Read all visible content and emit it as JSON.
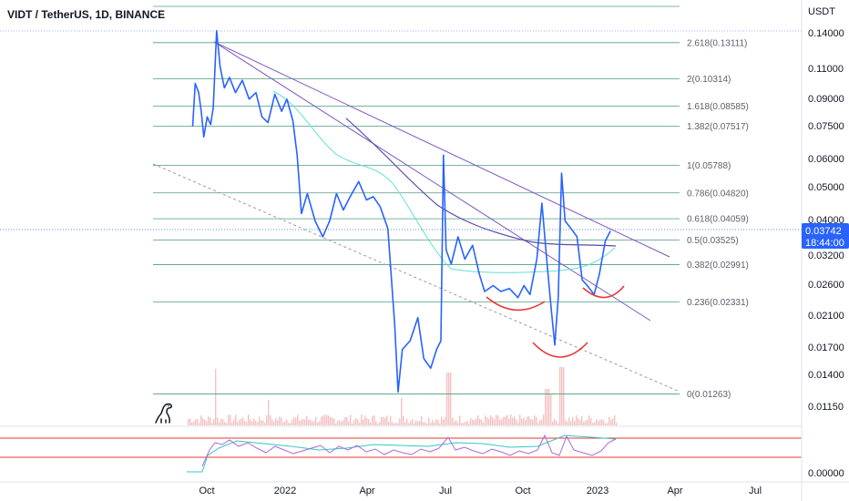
{
  "header": {
    "symbol_title": "VIDT / TetherUS, 1D, BINANCE"
  },
  "price_axis": {
    "unit": "USDT",
    "ticks": [
      "0.14000",
      "0.11000",
      "0.09000",
      "0.07500",
      "0.06000",
      "0.05000",
      "0.04000",
      "0.03200",
      "0.02600",
      "0.02100",
      "0.01700",
      "0.01400",
      "0.01150",
      "0.00000"
    ],
    "current_price": "0.03742",
    "countdown": "18:44:00"
  },
  "time_axis": {
    "ticks": [
      "Oct",
      "2022",
      "Apr",
      "Jul",
      "Oct",
      "2023",
      "Apr",
      "Jul"
    ]
  },
  "colors": {
    "price_line": "#2962ff",
    "fib_line": "#4f9b7f",
    "trend_line": "#7e57c2",
    "ma_line": "#5fe0d7",
    "annotation": "#e53935",
    "volume": "#f2c2c2",
    "rsi_line": "#ad6ad8",
    "rsi_bound": "#e53935",
    "current_price_badge": "#2962ff"
  },
  "icons": {
    "logo": "dinosaur-logo-icon"
  },
  "chart_data": {
    "type": "line",
    "title": "VIDT / TetherUS, 1D, BINANCE",
    "ylabel": "USDT",
    "yscale": "log",
    "ylim": [
      0.0115,
      0.16
    ],
    "xlim": [
      "2021-09-15",
      "2023-07-31"
    ],
    "grid": false,
    "series": [
      {
        "name": "VIDT/USDT",
        "points": [
          [
            "2021-09-15",
            0.075
          ],
          [
            "2021-09-18",
            0.1
          ],
          [
            "2021-09-22",
            0.094
          ],
          [
            "2021-09-25",
            0.083
          ],
          [
            "2021-09-28",
            0.07
          ],
          [
            "2021-10-02",
            0.08
          ],
          [
            "2021-10-06",
            0.076
          ],
          [
            "2021-10-09",
            0.085
          ],
          [
            "2021-10-13",
            0.142
          ],
          [
            "2021-10-17",
            0.112
          ],
          [
            "2021-10-22",
            0.097
          ],
          [
            "2021-10-28",
            0.104
          ],
          [
            "2021-11-04",
            0.094
          ],
          [
            "2021-11-12",
            0.102
          ],
          [
            "2021-11-20",
            0.09
          ],
          [
            "2021-11-28",
            0.094
          ],
          [
            "2021-12-05",
            0.08
          ],
          [
            "2021-12-12",
            0.077
          ],
          [
            "2021-12-20",
            0.093
          ],
          [
            "2021-12-28",
            0.083
          ],
          [
            "2022-01-03",
            0.09
          ],
          [
            "2022-01-10",
            0.078
          ],
          [
            "2022-01-15",
            0.062
          ],
          [
            "2022-01-20",
            0.042
          ],
          [
            "2022-01-27",
            0.048
          ],
          [
            "2022-02-05",
            0.04
          ],
          [
            "2022-02-14",
            0.036
          ],
          [
            "2022-02-22",
            0.04
          ],
          [
            "2022-03-02",
            0.048
          ],
          [
            "2022-03-10",
            0.043
          ],
          [
            "2022-03-18",
            0.047
          ],
          [
            "2022-03-28",
            0.052
          ],
          [
            "2022-04-06",
            0.046
          ],
          [
            "2022-04-14",
            0.047
          ],
          [
            "2022-04-22",
            0.044
          ],
          [
            "2022-05-01",
            0.038
          ],
          [
            "2022-05-09",
            0.02
          ],
          [
            "2022-05-13",
            0.0128
          ],
          [
            "2022-05-18",
            0.017
          ],
          [
            "2022-05-27",
            0.018
          ],
          [
            "2022-06-05",
            0.021
          ],
          [
            "2022-06-12",
            0.016
          ],
          [
            "2022-06-20",
            0.015
          ],
          [
            "2022-06-27",
            0.017
          ],
          [
            "2022-07-02",
            0.018
          ],
          [
            "2022-07-05",
            0.062
          ],
          [
            "2022-07-08",
            0.033
          ],
          [
            "2022-07-14",
            0.03
          ],
          [
            "2022-07-22",
            0.036
          ],
          [
            "2022-07-30",
            0.031
          ],
          [
            "2022-08-08",
            0.034
          ],
          [
            "2022-08-16",
            0.028
          ],
          [
            "2022-08-22",
            0.025
          ],
          [
            "2022-09-01",
            0.026
          ],
          [
            "2022-09-10",
            0.025
          ],
          [
            "2022-09-20",
            0.0255
          ],
          [
            "2022-09-30",
            0.024
          ],
          [
            "2022-10-07",
            0.026
          ],
          [
            "2022-10-14",
            0.0245
          ],
          [
            "2022-10-22",
            0.031
          ],
          [
            "2022-10-28",
            0.045
          ],
          [
            "2022-11-03",
            0.03
          ],
          [
            "2022-11-08",
            0.022
          ],
          [
            "2022-11-12",
            0.0175
          ],
          [
            "2022-11-16",
            0.024
          ],
          [
            "2022-11-20",
            0.055
          ],
          [
            "2022-11-24",
            0.04
          ],
          [
            "2022-12-01",
            0.038
          ],
          [
            "2022-12-08",
            0.036
          ],
          [
            "2022-12-14",
            0.027
          ],
          [
            "2022-12-20",
            0.026
          ],
          [
            "2022-12-28",
            0.0245
          ],
          [
            "2023-01-03",
            0.028
          ],
          [
            "2023-01-10",
            0.035
          ],
          [
            "2023-01-16",
            0.0374
          ]
        ]
      }
    ],
    "fibonacci_levels": [
      {
        "label": "2.618(0.13111)",
        "value": 0.13111
      },
      {
        "label": "2(0.10314)",
        "value": 0.10314
      },
      {
        "label": "1.618(0.08585)",
        "value": 0.08585
      },
      {
        "label": "1.382(0.07517)",
        "value": 0.07517
      },
      {
        "label": "1(0.05788)",
        "value": 0.05788
      },
      {
        "label": "0.786(0.04820)",
        "value": 0.0482
      },
      {
        "label": "0.618(0.04059)",
        "value": 0.04059
      },
      {
        "label": "0.5(0.03525)",
        "value": 0.03525
      },
      {
        "label": "0.382(0.02991)",
        "value": 0.02991
      },
      {
        "label": "0.236(0.02331)",
        "value": 0.02331
      },
      {
        "label": "0(0.01263)",
        "value": 0.01263
      }
    ],
    "rsi_panel": {
      "upper_band": 70,
      "lower_band": 30
    }
  }
}
